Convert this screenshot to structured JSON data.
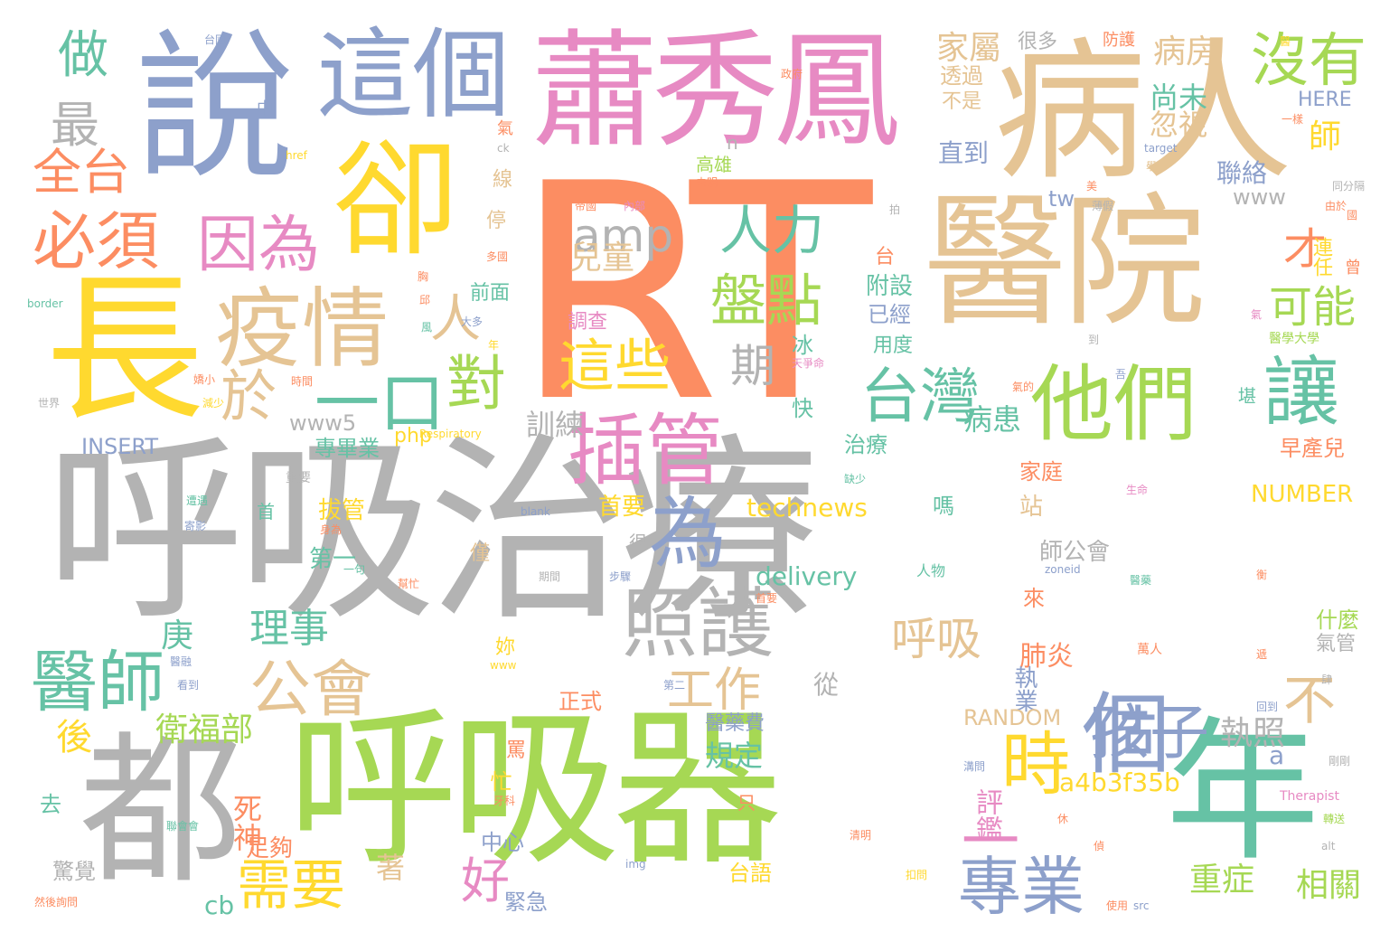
{
  "palette": {
    "gray": "#b3b3b3",
    "green": "#a6d854",
    "orange": "#fc8d62",
    "tan": "#e5c494",
    "pink": "#e78ac3",
    "blue": "#8da0cb",
    "yellow": "#ffd92f",
    "teal": "#66c2a5"
  },
  "words": [
    {
      "id": "w0",
      "text": "呼吸治療",
      "color": "gray"
    },
    {
      "id": "w1",
      "text": "RT",
      "color": "orange"
    },
    {
      "id": "w2",
      "text": "呼吸器",
      "color": "green"
    },
    {
      "id": "w3",
      "text": "病人",
      "color": "tan"
    },
    {
      "id": "w4",
      "text": "醫院",
      "color": "tan"
    },
    {
      "id": "w5",
      "text": "蕭秀鳳",
      "color": "pink"
    },
    {
      "id": "w6",
      "text": "長",
      "color": "yellow"
    },
    {
      "id": "w7",
      "text": "說",
      "color": "blue"
    },
    {
      "id": "w8",
      "text": "都",
      "color": "gray"
    },
    {
      "id": "w9",
      "text": "年",
      "color": "teal"
    },
    {
      "id": "w10",
      "text": "卻",
      "color": "yellow"
    },
    {
      "id": "w11",
      "text": "這個",
      "color": "blue"
    },
    {
      "id": "w12",
      "text": "個",
      "color": "blue"
    },
    {
      "id": "w13",
      "text": "插管",
      "color": "pink"
    },
    {
      "id": "w14",
      "text": "他們",
      "color": "green"
    },
    {
      "id": "w15",
      "text": "疫情",
      "color": "tan"
    },
    {
      "id": "w16",
      "text": "為",
      "color": "blue"
    },
    {
      "id": "w17",
      "text": "照護",
      "color": "gray"
    },
    {
      "id": "w18",
      "text": "醫師",
      "color": "teal"
    },
    {
      "id": "w19",
      "text": "專業",
      "color": "blue"
    },
    {
      "id": "w20",
      "text": "時",
      "color": "yellow"
    },
    {
      "id": "w21",
      "text": "讓",
      "color": "teal"
    },
    {
      "id": "w22",
      "text": "台灣",
      "color": "teal"
    },
    {
      "id": "w23",
      "text": "沒有",
      "color": "green"
    },
    {
      "id": "w24",
      "text": "必須",
      "color": "orange"
    },
    {
      "id": "w25",
      "text": "全台",
      "color": "orange"
    },
    {
      "id": "w26",
      "text": "孩子",
      "color": "blue"
    },
    {
      "id": "w27",
      "text": "盤點",
      "color": "green"
    },
    {
      "id": "w28",
      "text": "人力",
      "color": "teal"
    },
    {
      "id": "w29",
      "text": "因為",
      "color": "pink"
    },
    {
      "id": "w30",
      "text": "公會",
      "color": "tan"
    },
    {
      "id": "w31",
      "text": "需要",
      "color": "yellow"
    },
    {
      "id": "w32",
      "text": "一口",
      "color": "teal"
    },
    {
      "id": "w33",
      "text": "對",
      "color": "green"
    },
    {
      "id": "w34",
      "text": "這些",
      "color": "yellow"
    },
    {
      "id": "w35",
      "text": "amp",
      "color": "gray"
    },
    {
      "id": "w36",
      "text": "呼吸",
      "color": "tan"
    },
    {
      "id": "w37",
      "text": "工作",
      "color": "tan"
    },
    {
      "id": "w38",
      "text": "理事",
      "color": "teal"
    },
    {
      "id": "w39",
      "text": "一",
      "color": "pink"
    },
    {
      "id": "w40",
      "text": "好",
      "color": "pink"
    },
    {
      "id": "w41",
      "text": "期",
      "color": "gray"
    },
    {
      "id": "w42",
      "text": "於",
      "color": "tan"
    },
    {
      "id": "w43",
      "text": "人",
      "color": "tan"
    },
    {
      "id": "w44",
      "text": "最",
      "color": "gray"
    },
    {
      "id": "w45",
      "text": "做",
      "color": "teal"
    },
    {
      "id": "w46",
      "text": "衛福部",
      "color": "green"
    },
    {
      "id": "w47",
      "text": "才",
      "color": "orange"
    },
    {
      "id": "w48",
      "text": "可能",
      "color": "green"
    },
    {
      "id": "w49",
      "text": "病房",
      "color": "tan"
    },
    {
      "id": "w50",
      "text": "家屬",
      "color": "tan"
    },
    {
      "id": "w51",
      "text": "執照",
      "color": "gray"
    },
    {
      "id": "w52",
      "text": "不",
      "color": "tan"
    },
    {
      "id": "w53",
      "text": "師",
      "color": "yellow"
    },
    {
      "id": "w54",
      "text": "相關",
      "color": "green"
    },
    {
      "id": "w55",
      "text": "重症",
      "color": "green"
    },
    {
      "id": "w56",
      "text": "兒童",
      "color": "tan"
    },
    {
      "id": "w57",
      "text": "後",
      "color": "yellow"
    },
    {
      "id": "w58",
      "text": "庚",
      "color": "teal"
    },
    {
      "id": "w59",
      "text": "訓練",
      "color": "gray"
    },
    {
      "id": "w60",
      "text": "規定",
      "color": "teal"
    },
    {
      "id": "w61",
      "text": "評鑑",
      "color": "pink"
    },
    {
      "id": "w62",
      "text": "肺炎",
      "color": "orange"
    },
    {
      "id": "w63",
      "text": "病患",
      "color": "teal"
    },
    {
      "id": "w64",
      "text": "尚未",
      "color": "teal"
    },
    {
      "id": "w65",
      "text": "忽視",
      "color": "tan"
    },
    {
      "id": "w66",
      "text": "聯絡",
      "color": "blue"
    },
    {
      "id": "w67",
      "text": "直到",
      "color": "blue"
    },
    {
      "id": "w68",
      "text": "透過",
      "color": "tan"
    },
    {
      "id": "w69",
      "text": "不是",
      "color": "tan"
    },
    {
      "id": "w70",
      "text": "很多",
      "color": "gray"
    },
    {
      "id": "w71",
      "text": "附設",
      "color": "teal"
    },
    {
      "id": "w72",
      "text": "已經",
      "color": "blue"
    },
    {
      "id": "w73",
      "text": "用度",
      "color": "teal"
    },
    {
      "id": "w74",
      "text": "台",
      "color": "orange"
    },
    {
      "id": "w75",
      "text": "冰",
      "color": "teal"
    },
    {
      "id": "w76",
      "text": "快",
      "color": "teal"
    },
    {
      "id": "w77",
      "text": "從",
      "color": "gray"
    },
    {
      "id": "w78",
      "text": "治療",
      "color": "teal"
    },
    {
      "id": "w79",
      "text": "家庭",
      "color": "orange"
    },
    {
      "id": "w80",
      "text": "早產兒",
      "color": "orange"
    },
    {
      "id": "w81",
      "text": "專畢業",
      "color": "teal"
    },
    {
      "id": "w82",
      "text": "拔管",
      "color": "yellow"
    },
    {
      "id": "w83",
      "text": "第一",
      "color": "teal"
    },
    {
      "id": "w84",
      "text": "首要",
      "color": "yellow"
    },
    {
      "id": "w85",
      "text": "站",
      "color": "tan"
    },
    {
      "id": "w86",
      "text": "嗎",
      "color": "teal"
    },
    {
      "id": "w87",
      "text": "師公會",
      "color": "gray"
    },
    {
      "id": "w88",
      "text": "來",
      "color": "orange"
    },
    {
      "id": "w89",
      "text": "執業",
      "color": "blue"
    },
    {
      "id": "w90",
      "text": "什麼",
      "color": "green"
    },
    {
      "id": "w91",
      "text": "氣管",
      "color": "gray"
    },
    {
      "id": "w92",
      "text": "正式",
      "color": "orange"
    },
    {
      "id": "w93",
      "text": "醫藥費",
      "color": "blue"
    },
    {
      "id": "w94",
      "text": "RANDOM",
      "color": "tan"
    },
    {
      "id": "w95",
      "text": "a4b3f35b",
      "color": "yellow"
    },
    {
      "id": "w96",
      "text": "a",
      "color": "blue"
    },
    {
      "id": "w97",
      "text": "死神",
      "color": "orange"
    },
    {
      "id": "w98",
      "text": "足夠",
      "color": "orange"
    },
    {
      "id": "w99",
      "text": "驚覺",
      "color": "gray"
    },
    {
      "id": "w100",
      "text": "cb",
      "color": "teal"
    },
    {
      "id": "w101",
      "text": "著",
      "color": "tan"
    },
    {
      "id": "w102",
      "text": "中心",
      "color": "blue"
    },
    {
      "id": "w103",
      "text": "緊急",
      "color": "blue"
    },
    {
      "id": "w104",
      "text": "台語",
      "color": "yellow"
    },
    {
      "id": "w105",
      "text": "罵",
      "color": "orange"
    },
    {
      "id": "w106",
      "text": "忙",
      "color": "yellow"
    },
    {
      "id": "w107",
      "text": "只",
      "color": "orange"
    },
    {
      "id": "w108",
      "text": "去",
      "color": "teal"
    },
    {
      "id": "w109",
      "text": "www5",
      "color": "gray"
    },
    {
      "id": "w110",
      "text": "php",
      "color": "yellow"
    },
    {
      "id": "w111",
      "text": "INSERT",
      "color": "blue"
    },
    {
      "id": "w112",
      "text": "technews",
      "color": "yellow"
    },
    {
      "id": "w113",
      "text": "delivery",
      "color": "teal"
    },
    {
      "id": "w114",
      "text": "NUMBER",
      "color": "yellow"
    },
    {
      "id": "w115",
      "text": "www",
      "color": "gray"
    },
    {
      "id": "w116",
      "text": "tw",
      "color": "blue"
    },
    {
      "id": "w117",
      "text": "HERE",
      "color": "blue"
    },
    {
      "id": "w118",
      "text": "高雄",
      "color": "green"
    },
    {
      "id": "w119",
      "text": "n",
      "color": "gray"
    },
    {
      "id": "w120",
      "text": "線",
      "color": "tan"
    },
    {
      "id": "w121",
      "text": "停",
      "color": "tan"
    },
    {
      "id": "w122",
      "text": "前面",
      "color": "teal"
    },
    {
      "id": "w123",
      "text": "調查",
      "color": "pink"
    },
    {
      "id": "w124",
      "text": "妳",
      "color": "yellow"
    },
    {
      "id": "w125",
      "text": "僅",
      "color": "tan"
    },
    {
      "id": "w126",
      "text": "很",
      "color": "gray"
    },
    {
      "id": "w127",
      "text": "首",
      "color": "teal"
    },
    {
      "id": "w128",
      "text": "連任",
      "color": "yellow"
    },
    {
      "id": "w129",
      "text": "曾",
      "color": "orange"
    },
    {
      "id": "w130",
      "text": "堪",
      "color": "teal"
    },
    {
      "id": "w131",
      "text": "防護",
      "color": "orange"
    },
    {
      "id": "w132",
      "text": "台國",
      "color": "blue"
    },
    {
      "id": "w133",
      "text": "中",
      "color": "blue"
    },
    {
      "id": "w134",
      "text": "氣",
      "color": "orange"
    },
    {
      "id": "w135",
      "text": "ck",
      "color": "gray"
    },
    {
      "id": "w136",
      "text": "href",
      "color": "yellow"
    },
    {
      "id": "w137",
      "text": "border",
      "color": "teal"
    },
    {
      "id": "w138",
      "text": "世界",
      "color": "gray"
    },
    {
      "id": "w139",
      "text": "時間",
      "color": "orange"
    },
    {
      "id": "w140",
      "text": "醫學大學",
      "color": "green"
    },
    {
      "id": "w141",
      "text": "Respiratory",
      "color": "yellow"
    },
    {
      "id": "w142",
      "text": "blank",
      "color": "blue"
    },
    {
      "id": "w143",
      "text": "Therapist",
      "color": "pink"
    },
    {
      "id": "w144",
      "text": "src",
      "color": "blue"
    },
    {
      "id": "w145",
      "text": "img",
      "color": "blue"
    },
    {
      "id": "w146",
      "text": "alt",
      "color": "gray"
    },
    {
      "id": "w147",
      "text": "zoneid",
      "color": "blue"
    },
    {
      "id": "w148",
      "text": "target",
      "color": "blue"
    },
    {
      "id": "w149",
      "text": "人物",
      "color": "teal"
    },
    {
      "id": "w150",
      "text": "萬人",
      "color": "orange"
    },
    {
      "id": "w151",
      "text": "一句",
      "color": "teal"
    },
    {
      "id": "w152",
      "text": "重要",
      "color": "gray"
    },
    {
      "id": "w153",
      "text": "然後詢問",
      "color": "orange"
    },
    {
      "id": "w154",
      "text": "一樣",
      "color": "orange"
    },
    {
      "id": "w155",
      "text": "同分隔",
      "color": "gray"
    },
    {
      "id": "w156",
      "text": "大多",
      "color": "blue"
    },
    {
      "id": "w157",
      "text": "天爭命",
      "color": "pink"
    },
    {
      "id": "w158",
      "text": "減少",
      "color": "yellow"
    },
    {
      "id": "w159",
      "text": "缺少",
      "color": "teal"
    },
    {
      "id": "w160",
      "text": "政府",
      "color": "orange"
    },
    {
      "id": "w161",
      "text": "內部",
      "color": "pink"
    },
    {
      "id": "w162",
      "text": "帝國",
      "color": "orange"
    },
    {
      "id": "w163",
      "text": "多國",
      "color": "orange"
    },
    {
      "id": "w164",
      "text": "氣的",
      "color": "orange"
    },
    {
      "id": "w165",
      "text": "聯會會",
      "color": "teal"
    },
    {
      "id": "w166",
      "text": "清明",
      "color": "orange"
    },
    {
      "id": "w167",
      "text": "扣問",
      "color": "yellow"
    },
    {
      "id": "w168",
      "text": "使用",
      "color": "orange"
    },
    {
      "id": "w169",
      "text": "轉送",
      "color": "green"
    },
    {
      "id": "w170",
      "text": "剛剛",
      "color": "gray"
    },
    {
      "id": "w171",
      "text": "溝問",
      "color": "blue"
    },
    {
      "id": "w172",
      "text": "生命",
      "color": "pink"
    },
    {
      "id": "w173",
      "text": "步驟",
      "color": "blue"
    },
    {
      "id": "w174",
      "text": "期間",
      "color": "gray"
    },
    {
      "id": "w175",
      "text": "幫忙",
      "color": "orange"
    },
    {
      "id": "w176",
      "text": "首要",
      "color": "orange"
    },
    {
      "id": "w177",
      "text": "第二",
      "color": "blue"
    },
    {
      "id": "w178",
      "text": "www",
      "color": "yellow"
    },
    {
      "id": "w179",
      "text": "回到",
      "color": "blue"
    },
    {
      "id": "w180",
      "text": "身為",
      "color": "orange"
    },
    {
      "id": "w181",
      "text": "遭遇",
      "color": "teal"
    },
    {
      "id": "w182",
      "text": "學",
      "color": "tan"
    },
    {
      "id": "w183",
      "text": "到",
      "color": "gray"
    },
    {
      "id": "w184",
      "text": "看到",
      "color": "blue"
    },
    {
      "id": "w185",
      "text": "拍",
      "color": "gray"
    },
    {
      "id": "w186",
      "text": "未明",
      "color": "orange"
    },
    {
      "id": "w187",
      "text": "薄假",
      "color": "gray"
    },
    {
      "id": "w188",
      "text": "由於",
      "color": "orange"
    },
    {
      "id": "w189",
      "text": "休",
      "color": "orange"
    },
    {
      "id": "w190",
      "text": "風",
      "color": "teal"
    },
    {
      "id": "w191",
      "text": "氣",
      "color": "pink"
    },
    {
      "id": "w192",
      "text": "年",
      "color": "yellow"
    },
    {
      "id": "w193",
      "text": "醫",
      "color": "yellow"
    },
    {
      "id": "w194",
      "text": "嬌小",
      "color": "orange"
    },
    {
      "id": "w195",
      "text": "吾",
      "color": "blue"
    },
    {
      "id": "w196",
      "text": "醫融",
      "color": "blue"
    },
    {
      "id": "w197",
      "text": "遞",
      "color": "orange"
    },
    {
      "id": "w198",
      "text": "寄影",
      "color": "blue"
    },
    {
      "id": "w199",
      "text": "牙科",
      "color": "orange"
    },
    {
      "id": "w200",
      "text": "國",
      "color": "orange"
    },
    {
      "id": "w201",
      "text": "美",
      "color": "orange"
    },
    {
      "id": "w202",
      "text": "醫藥",
      "color": "teal"
    },
    {
      "id": "w203",
      "text": "偵",
      "color": "orange"
    },
    {
      "id": "w204",
      "text": "衡",
      "color": "orange"
    },
    {
      "id": "w205",
      "text": "肆",
      "color": "gray"
    },
    {
      "id": "w206",
      "text": "邱",
      "color": "orange"
    },
    {
      "id": "w207",
      "text": "胸",
      "color": "orange"
    }
  ]
}
